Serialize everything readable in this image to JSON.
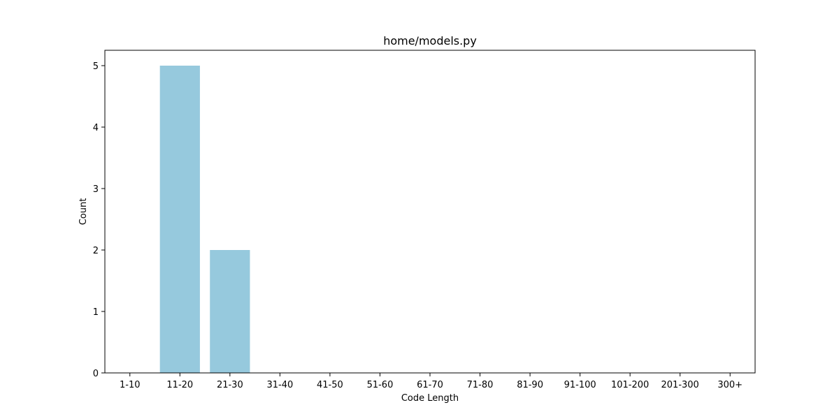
{
  "chart_data": {
    "type": "bar",
    "title": "home/models.py",
    "xlabel": "Code Length",
    "ylabel": "Count",
    "categories": [
      "1-10",
      "11-20",
      "21-30",
      "31-40",
      "41-50",
      "51-60",
      "61-70",
      "71-80",
      "81-90",
      "91-100",
      "101-200",
      "201-300",
      "300+"
    ],
    "values": [
      0,
      5,
      2,
      0,
      0,
      0,
      0,
      0,
      0,
      0,
      0,
      0,
      0
    ],
    "ylim": [
      0,
      5.25
    ],
    "yticks": [
      "0",
      "1",
      "2",
      "3",
      "4",
      "5"
    ],
    "bar_color": "#96c9dd",
    "grid": false,
    "legend": "none"
  }
}
